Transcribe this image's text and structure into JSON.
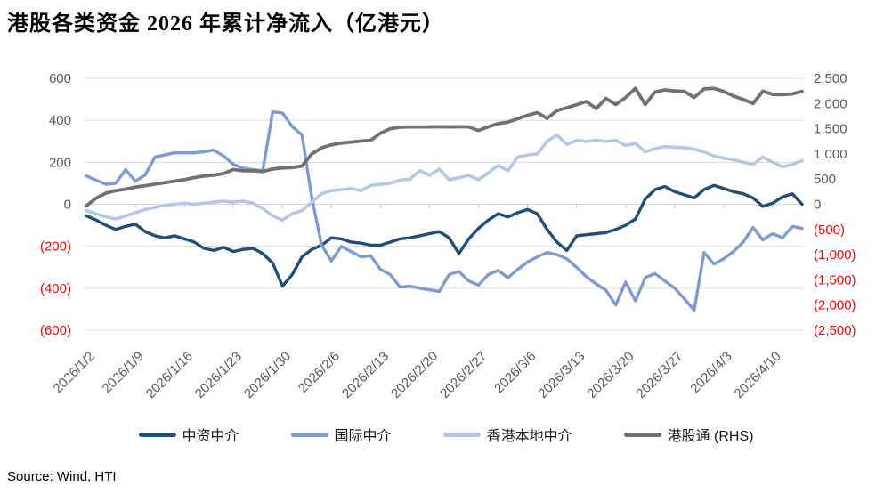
{
  "title": "港股各类资金 2026 年累计净流入（亿港元）",
  "source": "Source: Wind, HTI",
  "colors": {
    "grid": "#d9d9d9",
    "axis_text": "#595959",
    "negative_text": "#ff0000",
    "tick": "#bfbfbf"
  },
  "chart_data": {
    "type": "line",
    "title": "港股各类资金 2026 年累计净流入（亿港元）",
    "grid": true,
    "legend_position": "bottom",
    "x": [
      "2026/1/2",
      "2026/1/5",
      "2026/1/6",
      "2026/1/7",
      "2026/1/8",
      "2026/1/9",
      "2026/1/12",
      "2026/1/13",
      "2026/1/14",
      "2026/1/15",
      "2026/1/16",
      "2026/1/19",
      "2026/1/20",
      "2026/1/21",
      "2026/1/22",
      "2026/1/23",
      "2026/1/26",
      "2026/1/27",
      "2026/1/28",
      "2026/1/29",
      "2026/1/30",
      "2026/2/2",
      "2026/2/3",
      "2026/2/4",
      "2026/2/5",
      "2026/2/6",
      "2026/2/9",
      "2026/2/10",
      "2026/2/11",
      "2026/2/12",
      "2026/2/13",
      "2026/2/16",
      "2026/2/17",
      "2026/2/18",
      "2026/2/19",
      "2026/2/20",
      "2026/2/23",
      "2026/2/24",
      "2026/2/25",
      "2026/2/26",
      "2026/2/27",
      "2026/3/2",
      "2026/3/3",
      "2026/3/4",
      "2026/3/5",
      "2026/3/6",
      "2026/3/9",
      "2026/3/10",
      "2026/3/11",
      "2026/3/12",
      "2026/3/13",
      "2026/3/16",
      "2026/3/17",
      "2026/3/18",
      "2026/3/19",
      "2026/3/20",
      "2026/3/23",
      "2026/3/24",
      "2026/3/25",
      "2026/3/26",
      "2026/3/27",
      "2026/3/30",
      "2026/3/31",
      "2026/4/1",
      "2026/4/2",
      "2026/4/3",
      "2026/4/6",
      "2026/4/7",
      "2026/4/8",
      "2026/4/9",
      "2026/4/10",
      "2026/4/13",
      "2026/4/14",
      "2026/4/15"
    ],
    "x_tick_labels": [
      "2026/1/2",
      "2026/1/9",
      "2026/1/16",
      "2026/1/23",
      "2026/1/30",
      "2026/2/6",
      "2026/2/13",
      "2026/2/20",
      "2026/2/27",
      "2026/3/6",
      "2026/3/13",
      "2026/3/20",
      "2026/3/27",
      "2026/4/3",
      "2026/4/10"
    ],
    "x_tick_every": 5,
    "left_axis": {
      "min": -600,
      "max": 600,
      "step": 200,
      "tick_values": [
        600,
        400,
        200,
        0,
        -200,
        -400,
        -600
      ],
      "tick_labels": [
        "600",
        "400",
        "200",
        "0",
        "(200)",
        "(400)",
        "(600)"
      ]
    },
    "right_axis": {
      "min": -2500,
      "max": 2500,
      "step": 500,
      "tick_values": [
        2500,
        2000,
        1500,
        1000,
        500,
        0,
        -500,
        -1000,
        -1500,
        -2000,
        -2500
      ],
      "tick_labels": [
        "2,500",
        "2,000",
        "1,500",
        "1,000",
        "500",
        "0",
        "(500)",
        "(1,000)",
        "(1,500)",
        "(2,000)",
        "(2,500)"
      ]
    },
    "series": [
      {
        "id": "zhongzi",
        "name": "中资中介",
        "axis": "left",
        "color": "#1f4e79",
        "width": 3.4,
        "values": [
          -55,
          -75,
          -100,
          -120,
          -105,
          -95,
          -130,
          -150,
          -160,
          -150,
          -165,
          -180,
          -210,
          -220,
          -205,
          -225,
          -215,
          -210,
          -235,
          -280,
          -390,
          -335,
          -250,
          -215,
          -195,
          -160,
          -165,
          -180,
          -185,
          -195,
          -195,
          -180,
          -165,
          -160,
          -150,
          -140,
          -130,
          -160,
          -235,
          -165,
          -115,
          -75,
          -45,
          -60,
          -40,
          -25,
          -45,
          -120,
          -180,
          -220,
          -150,
          -145,
          -140,
          -135,
          -120,
          -100,
          -70,
          25,
          70,
          85,
          60,
          45,
          30,
          70,
          90,
          75,
          60,
          50,
          30,
          -10,
          5,
          35,
          50,
          0
        ]
      },
      {
        "id": "guoji",
        "name": "国际中介",
        "axis": "left",
        "color": "#7e9bd1",
        "width": 3.4,
        "values": [
          135,
          115,
          95,
          100,
          165,
          110,
          140,
          225,
          235,
          245,
          245,
          245,
          250,
          258,
          230,
          190,
          172,
          165,
          160,
          440,
          435,
          370,
          330,
          30,
          -195,
          -270,
          -200,
          -225,
          -250,
          -245,
          -310,
          -335,
          -395,
          -390,
          -400,
          -408,
          -415,
          -335,
          -320,
          -365,
          -385,
          -335,
          -315,
          -350,
          -310,
          -275,
          -250,
          -230,
          -240,
          -260,
          -300,
          -345,
          -380,
          -410,
          -480,
          -370,
          -460,
          -350,
          -330,
          -365,
          -400,
          -450,
          -505,
          -230,
          -285,
          -260,
          -225,
          -180,
          -110,
          -170,
          -140,
          -160,
          -105,
          -115
        ]
      },
      {
        "id": "xianggang",
        "name": "香港本地中介",
        "axis": "left",
        "color": "#b4c7e7",
        "width": 3.6,
        "values": [
          -30,
          -45,
          -60,
          -70,
          -55,
          -40,
          -25,
          -15,
          -5,
          0,
          5,
          0,
          5,
          10,
          15,
          10,
          15,
          5,
          -20,
          -55,
          -75,
          -45,
          -30,
          10,
          50,
          65,
          70,
          75,
          65,
          90,
          95,
          100,
          115,
          120,
          160,
          138,
          168,
          117,
          126,
          138,
          117,
          150,
          185,
          160,
          225,
          235,
          240,
          300,
          330,
          285,
          305,
          300,
          305,
          300,
          305,
          280,
          290,
          250,
          265,
          275,
          272,
          270,
          262,
          250,
          230,
          220,
          212,
          200,
          190,
          225,
          200,
          178,
          190,
          208
        ]
      },
      {
        "id": "ganggutong",
        "name": "港股通 (RHS)",
        "axis": "right",
        "color": "#747070",
        "width": 3.8,
        "values": [
          -30,
          120,
          220,
          270,
          300,
          340,
          370,
          400,
          430,
          460,
          490,
          530,
          560,
          580,
          610,
          690,
          665,
          665,
          650,
          700,
          720,
          730,
          760,
          1000,
          1120,
          1180,
          1215,
          1235,
          1255,
          1270,
          1410,
          1500,
          1530,
          1535,
          1535,
          1535,
          1540,
          1535,
          1540,
          1535,
          1465,
          1540,
          1600,
          1630,
          1700,
          1765,
          1820,
          1705,
          1860,
          1915,
          1975,
          2040,
          1900,
          2100,
          1980,
          2120,
          2300,
          1980,
          2230,
          2270,
          2250,
          2240,
          2120,
          2290,
          2300,
          2240,
          2150,
          2080,
          2000,
          2245,
          2180,
          2175,
          2190,
          2240
        ]
      }
    ]
  }
}
